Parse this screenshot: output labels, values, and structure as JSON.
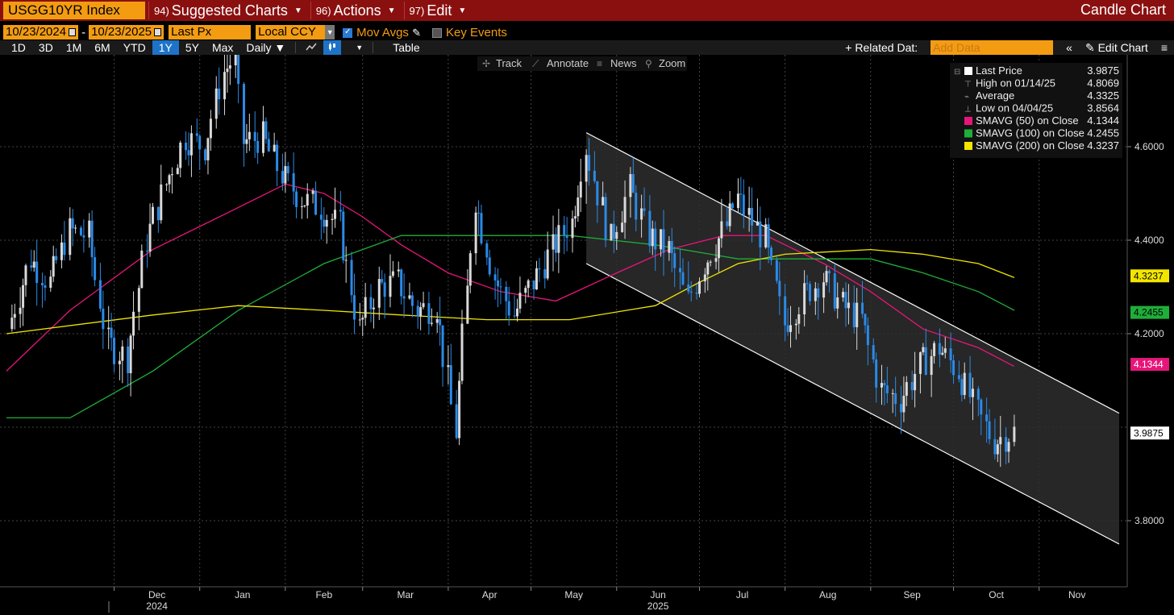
{
  "titlebar": {
    "ticker": "USGG10YR Index",
    "menus": [
      {
        "num": "94)",
        "label": "Suggested Charts"
      },
      {
        "num": "96)",
        "label": "Actions"
      },
      {
        "num": "97)",
        "label": "Edit"
      }
    ],
    "chart_kind": "Candle Chart"
  },
  "controls": {
    "start_date": "10/23/2024",
    "dash": "-",
    "end_date": "10/23/2025",
    "field": "Last Px",
    "currency": "Local CCY",
    "mov_avgs_label": "Mov Avgs",
    "mov_avgs_checked": true,
    "key_events_label": "Key Events",
    "key_events_checked": false
  },
  "toolbar": {
    "periods": [
      "1D",
      "3D",
      "1M",
      "6M",
      "YTD",
      "1Y",
      "5Y",
      "Max"
    ],
    "active_period": "1Y",
    "frequency": "Daily ▼",
    "table_label": "Table",
    "related_data": "+ Related Dat:",
    "add_data_placeholder": "Add Data",
    "collapse": "«",
    "edit_chart": "Edit Chart",
    "menu": "≡"
  },
  "chart_tools": [
    "Track",
    "Annotate",
    "News",
    "Zoom"
  ],
  "legend": {
    "rows": [
      {
        "label": "Last Price",
        "value": "3.9875",
        "swatch": "#ffffff"
      },
      {
        "label": "High on 01/14/25",
        "value": "4.8069",
        "swatch": ""
      },
      {
        "label": "Average",
        "value": "4.3325",
        "swatch": ""
      },
      {
        "label": "Low on 04/04/25",
        "value": "3.8564",
        "swatch": ""
      },
      {
        "label": "SMAVG (50)  on Close",
        "value": "4.1344",
        "swatch": "#e6157a"
      },
      {
        "label": "SMAVG (100)  on Close",
        "value": "4.2455",
        "swatch": "#1fae3a"
      },
      {
        "label": "SMAVG (200)  on Close",
        "value": "4.3237",
        "swatch": "#f2e600"
      }
    ]
  },
  "axis": {
    "y_ticks": [
      "4.6000",
      "4.4000",
      "4.2000",
      "3.8000"
    ],
    "x_months": [
      "Dec",
      "Jan",
      "Feb",
      "Mar",
      "Apr",
      "May",
      "Jun",
      "Jul",
      "Aug",
      "Sep",
      "Oct",
      "Nov"
    ],
    "x_years": [
      "2024",
      "2025"
    ],
    "value_tags": [
      {
        "label": "4.3237",
        "color": "#f2e600",
        "text_color": "#000"
      },
      {
        "label": "4.2455",
        "color": "#1fae3a",
        "text_color": "#000"
      },
      {
        "label": "4.1344",
        "color": "#e6157a",
        "text_color": "#fff"
      },
      {
        "label": "3.9875",
        "color": "#ffffff",
        "text_color": "#000"
      }
    ]
  },
  "chart_data": {
    "type": "candlestick",
    "title": "USGG10YR Index",
    "ylim": [
      3.7,
      4.85
    ],
    "x_range": [
      "2024-10-23",
      "2025-11-30"
    ],
    "closes": [
      {
        "x": "2024-10-24",
        "y": 4.21
      },
      {
        "x": "2024-11-01",
        "y": 4.36
      },
      {
        "x": "2024-11-08",
        "y": 4.31
      },
      {
        "x": "2024-11-15",
        "y": 4.42
      },
      {
        "x": "2024-11-22",
        "y": 4.41
      },
      {
        "x": "2024-11-29",
        "y": 4.18
      },
      {
        "x": "2024-12-06",
        "y": 4.15
      },
      {
        "x": "2024-12-13",
        "y": 4.4
      },
      {
        "x": "2024-12-20",
        "y": 4.52
      },
      {
        "x": "2024-12-27",
        "y": 4.62
      },
      {
        "x": "2025-01-03",
        "y": 4.6
      },
      {
        "x": "2025-01-10",
        "y": 4.76
      },
      {
        "x": "2025-01-14",
        "y": 4.79
      },
      {
        "x": "2025-01-17",
        "y": 4.61
      },
      {
        "x": "2025-01-24",
        "y": 4.62
      },
      {
        "x": "2025-01-31",
        "y": 4.54
      },
      {
        "x": "2025-02-07",
        "y": 4.49
      },
      {
        "x": "2025-02-14",
        "y": 4.47
      },
      {
        "x": "2025-02-21",
        "y": 4.43
      },
      {
        "x": "2025-02-28",
        "y": 4.21
      },
      {
        "x": "2025-03-07",
        "y": 4.3
      },
      {
        "x": "2025-03-14",
        "y": 4.31
      },
      {
        "x": "2025-03-21",
        "y": 4.25
      },
      {
        "x": "2025-03-28",
        "y": 4.26
      },
      {
        "x": "2025-04-04",
        "y": 3.99
      },
      {
        "x": "2025-04-11",
        "y": 4.49
      },
      {
        "x": "2025-04-18",
        "y": 4.32
      },
      {
        "x": "2025-04-25",
        "y": 4.24
      },
      {
        "x": "2025-05-02",
        "y": 4.31
      },
      {
        "x": "2025-05-09",
        "y": 4.38
      },
      {
        "x": "2025-05-16",
        "y": 4.44
      },
      {
        "x": "2025-05-21",
        "y": 4.6
      },
      {
        "x": "2025-05-30",
        "y": 4.4
      },
      {
        "x": "2025-06-06",
        "y": 4.51
      },
      {
        "x": "2025-06-13",
        "y": 4.41
      },
      {
        "x": "2025-06-20",
        "y": 4.38
      },
      {
        "x": "2025-06-27",
        "y": 4.27
      },
      {
        "x": "2025-07-03",
        "y": 4.35
      },
      {
        "x": "2025-07-11",
        "y": 4.43
      },
      {
        "x": "2025-07-15",
        "y": 4.49
      },
      {
        "x": "2025-07-25",
        "y": 4.4
      },
      {
        "x": "2025-08-01",
        "y": 4.22
      },
      {
        "x": "2025-08-08",
        "y": 4.28
      },
      {
        "x": "2025-08-15",
        "y": 4.32
      },
      {
        "x": "2025-08-22",
        "y": 4.26
      },
      {
        "x": "2025-08-29",
        "y": 4.23
      },
      {
        "x": "2025-09-05",
        "y": 4.08
      },
      {
        "x": "2025-09-12",
        "y": 4.06
      },
      {
        "x": "2025-09-19",
        "y": 4.13
      },
      {
        "x": "2025-09-26",
        "y": 4.17
      },
      {
        "x": "2025-10-03",
        "y": 4.12
      },
      {
        "x": "2025-10-10",
        "y": 4.03
      },
      {
        "x": "2025-10-16",
        "y": 3.97
      },
      {
        "x": "2025-10-23",
        "y": 3.99
      }
    ],
    "high": {
      "x": "2025-01-14",
      "y": 4.8069
    },
    "low": {
      "x": "2025-04-04",
      "y": 3.8564
    },
    "average": 4.3325,
    "last": 3.9875,
    "sma": [
      {
        "name": "SMAVG (50) on Close",
        "color": "#e6157a",
        "points": [
          {
            "x": "2024-10-23",
            "y": 4.12
          },
          {
            "x": "2024-11-15",
            "y": 4.25
          },
          {
            "x": "2024-12-15",
            "y": 4.38
          },
          {
            "x": "2025-01-15",
            "y": 4.47
          },
          {
            "x": "2025-02-01",
            "y": 4.52
          },
          {
            "x": "2025-02-15",
            "y": 4.5
          },
          {
            "x": "2025-03-01",
            "y": 4.45
          },
          {
            "x": "2025-03-15",
            "y": 4.39
          },
          {
            "x": "2025-04-01",
            "y": 4.33
          },
          {
            "x": "2025-04-20",
            "y": 4.29
          },
          {
            "x": "2025-05-10",
            "y": 4.27
          },
          {
            "x": "2025-06-01",
            "y": 4.33
          },
          {
            "x": "2025-06-20",
            "y": 4.38
          },
          {
            "x": "2025-07-10",
            "y": 4.41
          },
          {
            "x": "2025-07-25",
            "y": 4.41
          },
          {
            "x": "2025-08-15",
            "y": 4.35
          },
          {
            "x": "2025-09-01",
            "y": 4.29
          },
          {
            "x": "2025-09-20",
            "y": 4.21
          },
          {
            "x": "2025-10-10",
            "y": 4.17
          },
          {
            "x": "2025-10-23",
            "y": 4.13
          }
        ]
      },
      {
        "name": "SMAVG (100) on Close",
        "color": "#1fae3a",
        "points": [
          {
            "x": "2024-10-23",
            "y": 4.02
          },
          {
            "x": "2024-11-15",
            "y": 4.02
          },
          {
            "x": "2024-12-15",
            "y": 4.12
          },
          {
            "x": "2025-01-15",
            "y": 4.25
          },
          {
            "x": "2025-02-15",
            "y": 4.35
          },
          {
            "x": "2025-03-15",
            "y": 4.41
          },
          {
            "x": "2025-04-15",
            "y": 4.41
          },
          {
            "x": "2025-05-15",
            "y": 4.41
          },
          {
            "x": "2025-06-15",
            "y": 4.39
          },
          {
            "x": "2025-07-15",
            "y": 4.36
          },
          {
            "x": "2025-08-15",
            "y": 4.36
          },
          {
            "x": "2025-09-01",
            "y": 4.36
          },
          {
            "x": "2025-09-20",
            "y": 4.33
          },
          {
            "x": "2025-10-10",
            "y": 4.29
          },
          {
            "x": "2025-10-23",
            "y": 4.25
          }
        ]
      },
      {
        "name": "SMAVG (200) on Close",
        "color": "#f2e600",
        "points": [
          {
            "x": "2024-10-23",
            "y": 4.2
          },
          {
            "x": "2024-12-15",
            "y": 4.24
          },
          {
            "x": "2025-01-15",
            "y": 4.26
          },
          {
            "x": "2025-02-15",
            "y": 4.25
          },
          {
            "x": "2025-03-15",
            "y": 4.24
          },
          {
            "x": "2025-04-15",
            "y": 4.23
          },
          {
            "x": "2025-05-15",
            "y": 4.23
          },
          {
            "x": "2025-06-15",
            "y": 4.26
          },
          {
            "x": "2025-07-01",
            "y": 4.31
          },
          {
            "x": "2025-07-15",
            "y": 4.35
          },
          {
            "x": "2025-08-01",
            "y": 4.37
          },
          {
            "x": "2025-09-01",
            "y": 4.38
          },
          {
            "x": "2025-09-20",
            "y": 4.37
          },
          {
            "x": "2025-10-10",
            "y": 4.35
          },
          {
            "x": "2025-10-23",
            "y": 4.32
          }
        ]
      }
    ],
    "channel": {
      "upper": [
        {
          "x": "2025-05-21",
          "y": 4.63
        },
        {
          "x": "2025-11-30",
          "y": 4.03
        }
      ],
      "lower": [
        {
          "x": "2025-05-21",
          "y": 4.35
        },
        {
          "x": "2025-11-30",
          "y": 3.75
        }
      ]
    }
  }
}
